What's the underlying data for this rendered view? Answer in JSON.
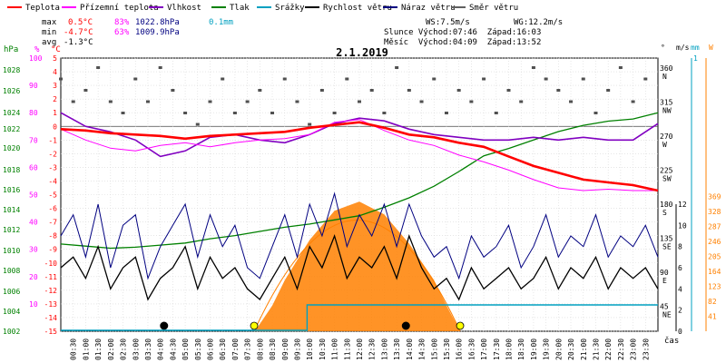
{
  "chart_data": {
    "type": "line",
    "title": "2.1.2019",
    "legend": [
      {
        "label": "Teplota",
        "color": "#ff0000"
      },
      {
        "label": "Přízemní teplota",
        "color": "#ff00ff"
      },
      {
        "label": "Vlhkost",
        "color": "#8000c0"
      },
      {
        "label": "Tlak",
        "color": "#008000"
      },
      {
        "label": "Srážky",
        "color": "#00a0c0"
      },
      {
        "label": "Rychlost větru",
        "color": "#000000"
      },
      {
        "label": "Náraz větru",
        "color": "#000080"
      },
      {
        "label": "Směr větru",
        "color": "#606060"
      }
    ],
    "stats": {
      "max_label": "max",
      "max_temp": "0.5°C",
      "max_hum": "83%",
      "max_press": "1022.8hPa",
      "max_rain": "0.1mm",
      "min_label": "min",
      "min_temp": "-4.7°C",
      "min_hum": "63%",
      "min_press": "1009.9hPa",
      "avg_label": "avg",
      "avg_temp": "-1.3°C"
    },
    "wind": {
      "ws": "WS:7.5m/s",
      "wg": "WG:12.2m/s",
      "sun": "Slunce Východ:07:46  Západ:16:03",
      "moon": "Měsíc  Východ:04:09  Západ:13:52"
    },
    "axis_units": {
      "press": "hPa",
      "hum": "%",
      "temp": "°C",
      "dir": "°",
      "speed": "m/s",
      "rain": "mm",
      "solar": "W",
      "time": "čas"
    },
    "axes": {
      "press_ticks": [
        "1028",
        "1026",
        "1024",
        "1022",
        "1020",
        "1018",
        "1016",
        "1014",
        "1012",
        "1010",
        "1008",
        "1006",
        "1004",
        "1002"
      ],
      "hum_ticks": [
        "100",
        "90",
        "80",
        "70",
        "60",
        "50",
        "40",
        "30",
        "20",
        "10"
      ],
      "temp_ticks": [
        "5",
        "4",
        "3",
        "2",
        "1",
        "0",
        "-1",
        "-2",
        "-3",
        "-4",
        "-5",
        "-6",
        "-7",
        "-8",
        "-9",
        "-10",
        "-11",
        "-12",
        "-13",
        "-14",
        "-15"
      ],
      "dir_ticks": [
        [
          "360",
          "N"
        ],
        [
          "315",
          "NW"
        ],
        [
          "270",
          "W"
        ],
        [
          "225",
          "SW"
        ],
        [
          "180",
          "S"
        ],
        [
          "135",
          "SE"
        ],
        [
          "90",
          "E"
        ],
        [
          "45",
          "NE"
        ]
      ],
      "speed_ticks": [
        "12",
        "10",
        "8",
        "6",
        "4",
        "2",
        "0"
      ],
      "rain_ticks": [
        "1"
      ],
      "solar_ticks": [
        "369",
        "328",
        "287",
        "246",
        "205",
        "164",
        "123",
        "82",
        "41"
      ],
      "time_ticks": [
        "00:30",
        "01:00",
        "01:30",
        "02:00",
        "02:30",
        "03:00",
        "03:30",
        "04:00",
        "04:30",
        "05:00",
        "05:30",
        "06:00",
        "06:30",
        "07:00",
        "07:30",
        "08:00",
        "08:30",
        "09:00",
        "09:30",
        "10:00",
        "10:30",
        "11:00",
        "11:30",
        "12:00",
        "12:30",
        "13:00",
        "13:30",
        "14:00",
        "14:30",
        "15:00",
        "15:30",
        "16:00",
        "16:30",
        "17:00",
        "17:30",
        "18:00",
        "18:30",
        "19:00",
        "19:30",
        "20:00",
        "20:30",
        "21:00",
        "21:30",
        "22:00",
        "22:30",
        "23:00",
        "23:30"
      ],
      "temp_range": [
        -15,
        5
      ],
      "hum_range": [
        0,
        100
      ],
      "press_range": [
        1002,
        1028
      ],
      "speed_range": [
        0,
        12
      ],
      "x_range_hours": [
        0,
        24
      ]
    },
    "series": {
      "temperature_c": [
        [
          0,
          -0.2
        ],
        [
          1,
          -0.3
        ],
        [
          2,
          -0.5
        ],
        [
          3,
          -0.6
        ],
        [
          4,
          -0.7
        ],
        [
          5,
          -0.9
        ],
        [
          6,
          -0.7
        ],
        [
          7,
          -0.6
        ],
        [
          8,
          -0.5
        ],
        [
          9,
          -0.4
        ],
        [
          10,
          -0.1
        ],
        [
          11,
          0.1
        ],
        [
          12,
          0.3
        ],
        [
          13,
          -0.1
        ],
        [
          14,
          -0.6
        ],
        [
          15,
          -0.8
        ],
        [
          16,
          -1.2
        ],
        [
          17,
          -1.5
        ],
        [
          18,
          -2.2
        ],
        [
          19,
          -2.9
        ],
        [
          20,
          -3.4
        ],
        [
          21,
          -3.9
        ],
        [
          22,
          -4.1
        ],
        [
          23,
          -4.3
        ],
        [
          24,
          -4.7
        ]
      ],
      "ground_temp_c": [
        [
          0,
          -0.2
        ],
        [
          1,
          -1.0
        ],
        [
          2,
          -1.6
        ],
        [
          3,
          -1.8
        ],
        [
          4,
          -1.4
        ],
        [
          5,
          -1.2
        ],
        [
          6,
          -1.5
        ],
        [
          7,
          -1.2
        ],
        [
          8,
          -1.0
        ],
        [
          9,
          -0.9
        ],
        [
          10,
          -0.6
        ],
        [
          11,
          0.3
        ],
        [
          12,
          0.5
        ],
        [
          13,
          -0.3
        ],
        [
          14,
          -1.0
        ],
        [
          15,
          -1.4
        ],
        [
          16,
          -2.1
        ],
        [
          17,
          -2.6
        ],
        [
          18,
          -3.2
        ],
        [
          19,
          -3.9
        ],
        [
          20,
          -4.5
        ],
        [
          21,
          -4.7
        ],
        [
          22,
          -4.6
        ],
        [
          23,
          -4.7
        ],
        [
          24,
          -4.7
        ]
      ],
      "humidity_pct": [
        [
          0,
          80
        ],
        [
          1,
          75
        ],
        [
          2,
          73
        ],
        [
          3,
          70
        ],
        [
          4,
          64
        ],
        [
          5,
          66
        ],
        [
          6,
          71
        ],
        [
          7,
          72
        ],
        [
          8,
          70
        ],
        [
          9,
          69
        ],
        [
          10,
          72
        ],
        [
          11,
          76
        ],
        [
          12,
          78
        ],
        [
          13,
          77
        ],
        [
          14,
          74
        ],
        [
          15,
          72
        ],
        [
          16,
          71
        ],
        [
          17,
          70
        ],
        [
          18,
          70
        ],
        [
          19,
          71
        ],
        [
          20,
          70
        ],
        [
          21,
          71
        ],
        [
          22,
          70
        ],
        [
          23,
          70
        ],
        [
          24,
          76
        ]
      ],
      "pressure_hpa": [
        [
          0,
          1010.3
        ],
        [
          1,
          1010.1
        ],
        [
          2,
          1009.9
        ],
        [
          3,
          1010.0
        ],
        [
          4,
          1010.2
        ],
        [
          5,
          1010.4
        ],
        [
          6,
          1010.8
        ],
        [
          7,
          1011.1
        ],
        [
          8,
          1011.5
        ],
        [
          9,
          1011.9
        ],
        [
          10,
          1012.2
        ],
        [
          11,
          1012.6
        ],
        [
          12,
          1013.0
        ],
        [
          13,
          1013.8
        ],
        [
          14,
          1014.7
        ],
        [
          15,
          1015.8
        ],
        [
          16,
          1017.2
        ],
        [
          17,
          1018.7
        ],
        [
          18,
          1019.4
        ],
        [
          19,
          1020.2
        ],
        [
          20,
          1021.0
        ],
        [
          21,
          1021.6
        ],
        [
          22,
          1022.0
        ],
        [
          23,
          1022.2
        ],
        [
          24,
          1022.8
        ]
      ],
      "wind_speed_ms": [
        [
          0,
          6
        ],
        [
          0.5,
          7
        ],
        [
          1,
          5
        ],
        [
          1.5,
          8
        ],
        [
          2,
          4
        ],
        [
          2.5,
          6
        ],
        [
          3,
          7
        ],
        [
          3.5,
          3
        ],
        [
          4,
          5
        ],
        [
          4.5,
          6
        ],
        [
          5,
          8
        ],
        [
          5.5,
          4
        ],
        [
          6,
          7
        ],
        [
          6.5,
          5
        ],
        [
          7,
          6
        ],
        [
          7.5,
          4
        ],
        [
          8,
          3
        ],
        [
          8.5,
          5
        ],
        [
          9,
          7
        ],
        [
          9.5,
          4
        ],
        [
          10,
          8
        ],
        [
          10.5,
          6
        ],
        [
          11,
          9
        ],
        [
          11.5,
          5
        ],
        [
          12,
          7
        ],
        [
          12.5,
          6
        ],
        [
          13,
          8
        ],
        [
          13.5,
          5
        ],
        [
          14,
          9
        ],
        [
          14.5,
          6
        ],
        [
          15,
          4
        ],
        [
          15.5,
          5
        ],
        [
          16,
          3
        ],
        [
          16.5,
          6
        ],
        [
          17,
          4
        ],
        [
          17.5,
          5
        ],
        [
          18,
          6
        ],
        [
          18.5,
          4
        ],
        [
          19,
          5
        ],
        [
          19.5,
          7
        ],
        [
          20,
          4
        ],
        [
          20.5,
          6
        ],
        [
          21,
          5
        ],
        [
          21.5,
          7
        ],
        [
          22,
          4
        ],
        [
          22.5,
          6
        ],
        [
          23,
          5
        ],
        [
          23.5,
          6
        ],
        [
          24,
          4
        ]
      ],
      "wind_gust_ms": [
        [
          0,
          9
        ],
        [
          0.5,
          11
        ],
        [
          1,
          7
        ],
        [
          1.5,
          12
        ],
        [
          2,
          6
        ],
        [
          2.5,
          10
        ],
        [
          3,
          11
        ],
        [
          3.5,
          5
        ],
        [
          4,
          8
        ],
        [
          4.5,
          10
        ],
        [
          5,
          12
        ],
        [
          5.5,
          7
        ],
        [
          6,
          11
        ],
        [
          6.5,
          8
        ],
        [
          7,
          10
        ],
        [
          7.5,
          6
        ],
        [
          8,
          5
        ],
        [
          8.5,
          8
        ],
        [
          9,
          11
        ],
        [
          9.5,
          7
        ],
        [
          10,
          12
        ],
        [
          10.5,
          9
        ],
        [
          11,
          13
        ],
        [
          11.5,
          8
        ],
        [
          12,
          11
        ],
        [
          12.5,
          9
        ],
        [
          13,
          12
        ],
        [
          13.5,
          8
        ],
        [
          14,
          12
        ],
        [
          14.5,
          9
        ],
        [
          15,
          7
        ],
        [
          15.5,
          8
        ],
        [
          16,
          5
        ],
        [
          16.5,
          9
        ],
        [
          17,
          7
        ],
        [
          17.5,
          8
        ],
        [
          18,
          10
        ],
        [
          18.5,
          6
        ],
        [
          19,
          8
        ],
        [
          19.5,
          11
        ],
        [
          20,
          7
        ],
        [
          20.5,
          9
        ],
        [
          21,
          8
        ],
        [
          21.5,
          11
        ],
        [
          22,
          7
        ],
        [
          22.5,
          9
        ],
        [
          23,
          8
        ],
        [
          23.5,
          10
        ],
        [
          24,
          7
        ]
      ],
      "rain_mm": [
        [
          9.9,
          0.1
        ],
        [
          24,
          0.1
        ]
      ],
      "solar_w": [
        [
          7.8,
          0
        ],
        [
          8.5,
          70
        ],
        [
          9,
          140
        ],
        [
          10,
          250
        ],
        [
          11,
          330
        ],
        [
          12,
          355
        ],
        [
          13,
          320
        ],
        [
          14,
          240
        ],
        [
          15,
          140
        ],
        [
          15.5,
          70
        ],
        [
          16.05,
          0
        ]
      ],
      "wind_dir_deg": [
        [
          0,
          345
        ],
        [
          0.5,
          315
        ],
        [
          1,
          330
        ],
        [
          1.5,
          360
        ],
        [
          2,
          315
        ],
        [
          2.5,
          300
        ],
        [
          3,
          345
        ],
        [
          3.5,
          315
        ],
        [
          4,
          360
        ],
        [
          4.5,
          330
        ],
        [
          5,
          300
        ],
        [
          5.5,
          285
        ],
        [
          6,
          315
        ],
        [
          6.5,
          345
        ],
        [
          7,
          300
        ],
        [
          7.5,
          315
        ],
        [
          8,
          330
        ],
        [
          8.5,
          300
        ],
        [
          9,
          345
        ],
        [
          9.5,
          315
        ],
        [
          10,
          285
        ],
        [
          10.5,
          330
        ],
        [
          11,
          300
        ],
        [
          11.5,
          345
        ],
        [
          12,
          315
        ],
        [
          12.5,
          330
        ],
        [
          13,
          300
        ],
        [
          13.5,
          360
        ],
        [
          14,
          330
        ],
        [
          14.5,
          315
        ],
        [
          15,
          345
        ],
        [
          15.5,
          300
        ],
        [
          16,
          330
        ],
        [
          16.5,
          315
        ],
        [
          17,
          345
        ],
        [
          17.5,
          300
        ],
        [
          18,
          330
        ],
        [
          18.5,
          315
        ],
        [
          19,
          360
        ],
        [
          19.5,
          345
        ],
        [
          20,
          330
        ],
        [
          20.5,
          315
        ],
        [
          21,
          345
        ],
        [
          21.5,
          300
        ],
        [
          22,
          330
        ],
        [
          22.5,
          360
        ],
        [
          23,
          315
        ],
        [
          23.5,
          345
        ]
      ]
    },
    "sun_times_hours": [
      7.77,
      16.05
    ],
    "moon_times_hours": [
      4.15,
      13.87
    ]
  }
}
